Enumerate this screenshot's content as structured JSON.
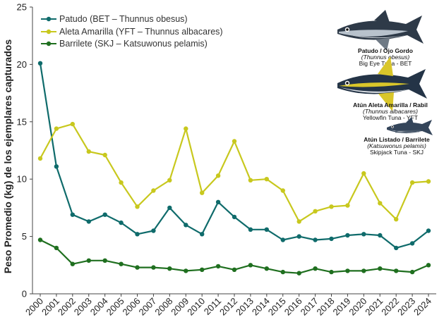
{
  "chart_data": {
    "type": "line",
    "title": "",
    "xlabel": "",
    "ylabel": "Peso Promedio (kg) de los ejemplares capturados",
    "ylim": [
      0,
      25
    ],
    "yticks": [
      0,
      5,
      10,
      15,
      20,
      25
    ],
    "grid": false,
    "legend_position": "top-left",
    "x": [
      "2000",
      "2001",
      "2002",
      "2003",
      "2004",
      "2005",
      "2006",
      "2007",
      "2008",
      "2009",
      "2010",
      "2011",
      "2012",
      "2013",
      "2014",
      "2015",
      "2016",
      "2017",
      "2018",
      "2019",
      "2020",
      "2021",
      "2022",
      "2023",
      "2024"
    ],
    "series": [
      {
        "name": "Patudo (BET – Thunnus obesus)",
        "color": "#0f6b6b",
        "values": [
          20.1,
          11.1,
          6.9,
          6.3,
          6.9,
          6.2,
          5.2,
          5.5,
          7.5,
          6.0,
          5.2,
          8.0,
          6.7,
          5.6,
          5.6,
          4.7,
          5.0,
          4.7,
          4.8,
          5.1,
          5.2,
          5.1,
          4.0,
          4.4,
          5.5
        ]
      },
      {
        "name": "Aleta Amarilla (YFT – Thunnus albacares)",
        "color": "#c8c81e",
        "values": [
          11.8,
          14.4,
          14.8,
          12.4,
          12.1,
          9.7,
          7.6,
          9.0,
          9.9,
          14.4,
          8.8,
          10.3,
          13.3,
          9.9,
          10.0,
          9.0,
          6.3,
          7.2,
          7.6,
          7.7,
          10.5,
          7.9,
          6.5,
          9.7,
          9.8
        ]
      },
      {
        "name": "Barrilete (SKJ – Katsuwonus pelamis)",
        "color": "#1f6f1f",
        "values": [
          4.7,
          4.0,
          2.6,
          2.9,
          2.9,
          2.6,
          2.3,
          2.3,
          2.2,
          2.0,
          2.1,
          2.4,
          2.1,
          2.5,
          2.2,
          1.9,
          1.8,
          2.2,
          1.9,
          2.0,
          2.0,
          2.2,
          2.0,
          1.9,
          2.5
        ]
      }
    ]
  },
  "captions": [
    {
      "title": "Patudo / Ojo Gordo",
      "scientific": "(Thunnus obesus)",
      "common": "Big Eye Tuna - BET"
    },
    {
      "title": "Atún Aleta Amarilla / Rabil",
      "scientific": "(Thunnus albacares)",
      "common": "Yellowfin Tuna - YFT"
    },
    {
      "title": "Atún Listado / Barrilete",
      "scientific": "(Katsuwonus pelamis)",
      "common": "Skipjack Tuna - SKJ"
    }
  ]
}
